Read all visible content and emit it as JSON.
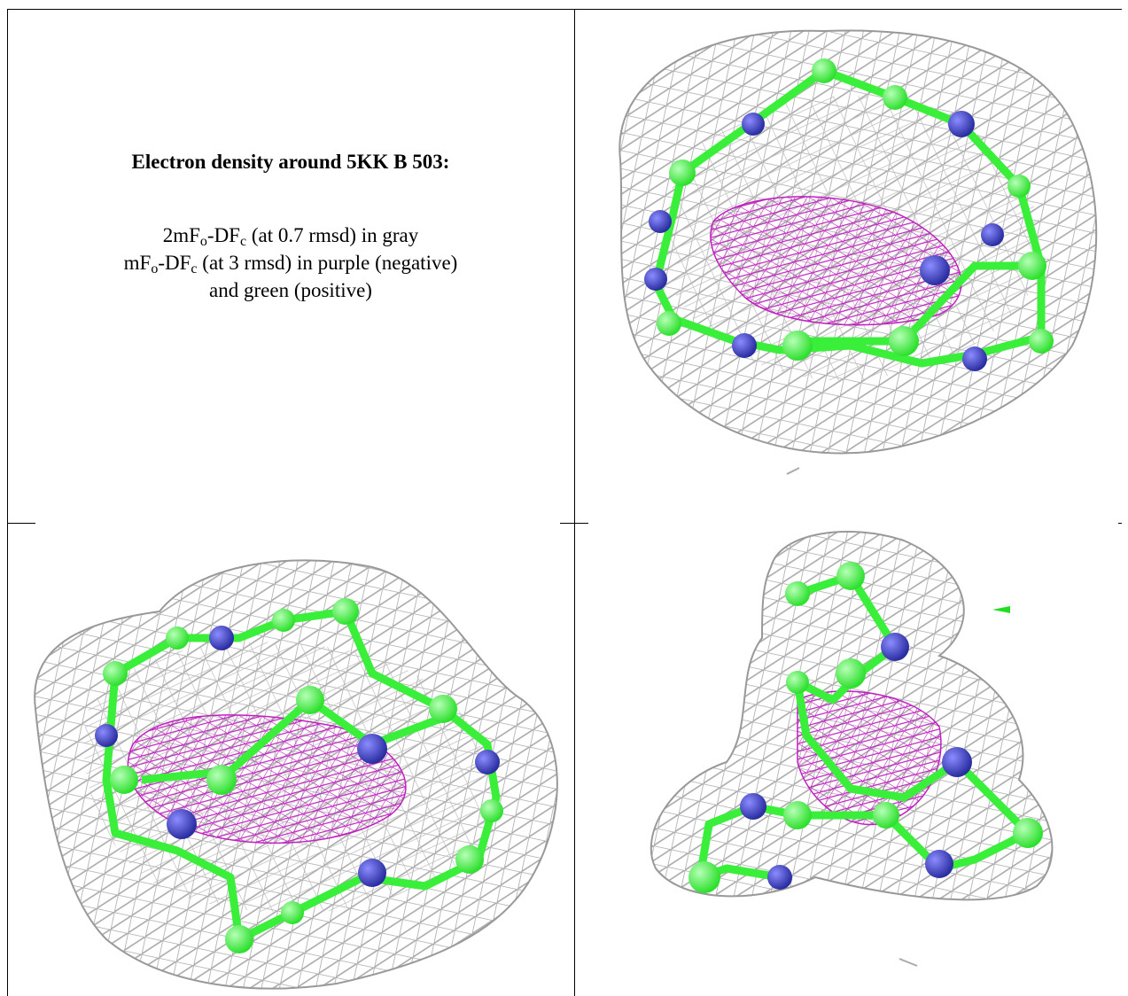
{
  "figure": {
    "title": "Electron density around 5KK B 503:",
    "lines": [
      [
        {
          "text": "2mF"
        },
        {
          "sub": "o"
        },
        {
          "text": "-DF"
        },
        {
          "sub": "c"
        },
        {
          "text": " (at 0.7 rmsd) in gray"
        }
      ],
      [
        {
          "text": "mF"
        },
        {
          "sub": "o"
        },
        {
          "text": "-DF"
        },
        {
          "sub": "c"
        },
        {
          "text": " (at 3 rmsd) in purple (negative)"
        }
      ],
      [
        {
          "text": "and green (positive)"
        }
      ]
    ]
  }
}
